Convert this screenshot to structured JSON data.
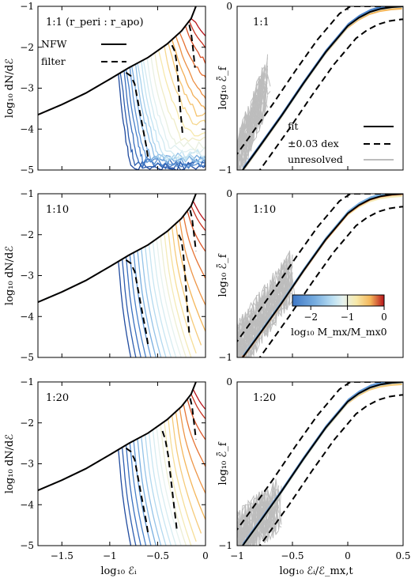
{
  "colors": {
    "nfw": "#000000",
    "filter": "#000000",
    "unresolved": "#bdbdbd",
    "colormap": [
      "#1f4a9e",
      "#3f78c6",
      "#78aee0",
      "#bfe2f3",
      "#e6f2ef",
      "#f7e8a8",
      "#f4b65a",
      "#e3642a",
      "#b8141b"
    ]
  },
  "colorbar": {
    "label": "log₁₀ M_mx/M_mx0",
    "ticks": [
      "−2",
      "−1",
      "0"
    ],
    "range": [
      -2.5,
      0
    ]
  },
  "legend_left": {
    "nfw": "NFW",
    "filter": "filter"
  },
  "legend_right": {
    "fit": "fit",
    "dex": "±0.03 dex",
    "unresolved": "unresolved"
  },
  "left_axes": {
    "xlabel": "log₁₀ ℰᵢ",
    "ylabel": "log₁₀ dN/dℰ",
    "xlim": [
      -1.75,
      0
    ],
    "ylim": [
      -5,
      -1
    ],
    "xticks": [
      "−1.5",
      "−1",
      "−0.5",
      "0"
    ],
    "yticks": [
      "−5",
      "−4",
      "−3",
      "−2",
      "−1"
    ]
  },
  "right_axes": {
    "xlabel": "log₁₀ ℰᵢ/ℰ_mx,t",
    "ylabel": "log₁₀ ℰ̄_f",
    "xlim": [
      -1,
      0.5
    ],
    "ylim": [
      -1,
      0
    ],
    "xticks": [
      "−1",
      "−0.5",
      "0",
      "0.5"
    ],
    "yticks": [
      "−1",
      "0"
    ]
  },
  "panels": [
    {
      "label": "1:1",
      "label_suffix": "(r_peri : r_apo)"
    },
    {
      "label": "1:10",
      "label_suffix": ""
    },
    {
      "label": "1:20",
      "label_suffix": ""
    }
  ],
  "chart_data": [
    {
      "type": "line",
      "panel": "1:1 left",
      "xlabel": "log₁₀ ℰᵢ",
      "ylabel": "log₁₀ dN/dℰ",
      "xlim": [
        -1.75,
        0
      ],
      "ylim": [
        -5,
        -1
      ],
      "nfw": {
        "x": [
          -1.75,
          -1.5,
          -1.25,
          -1.0,
          -0.8,
          -0.6,
          -0.4,
          -0.25,
          -0.15,
          -0.1
        ],
        "y": [
          -3.65,
          -3.4,
          -3.12,
          -2.78,
          -2.5,
          -2.25,
          -1.92,
          -1.6,
          -1.3,
          -1.0
        ]
      },
      "filter_curves": [
        {
          "x": [
            -0.83,
            -0.78,
            -0.74,
            -0.7,
            -0.66,
            -0.62,
            -0.6
          ],
          "y": [
            -2.62,
            -2.7,
            -2.9,
            -3.4,
            -3.9,
            -4.4,
            -4.7
          ]
        },
        {
          "x": [
            -0.35,
            -0.32,
            -0.3,
            -0.28,
            -0.26,
            -0.24
          ],
          "y": [
            -1.95,
            -2.1,
            -2.4,
            -3.0,
            -3.6,
            -4.1
          ]
        },
        {
          "x": [
            -0.17,
            -0.15,
            -0.13,
            -0.11
          ],
          "y": [
            -1.45,
            -1.65,
            -2.05,
            -2.5
          ]
        }
      ],
      "cut_points": [
        -0.9,
        -0.87,
        -0.84,
        -0.81,
        -0.78,
        -0.75,
        -0.72,
        -0.69,
        -0.66,
        -0.63,
        -0.6,
        -0.56,
        -0.52,
        -0.47,
        -0.42,
        -0.37,
        -0.33,
        -0.29,
        -0.25,
        -0.2,
        -0.16,
        -0.13
      ],
      "curve_tail_levels": [
        -4.9,
        -4.9,
        -4.85,
        -4.8,
        -4.8,
        -4.75,
        -4.7,
        -4.7,
        -4.65,
        -4.6,
        -4.5,
        -4.4,
        -4.2,
        -4.05,
        -3.9,
        -3.7,
        -3.5,
        -3.3,
        -3.0,
        -2.7,
        -2.4,
        -2.2
      ]
    },
    {
      "type": "line",
      "panel": "1:1 right",
      "xlabel": "log₁₀ ℰᵢ/ℰ_mx,t",
      "ylabel": "log₁₀ ℰ̄_f",
      "xlim": [
        -1,
        0.5
      ],
      "ylim": [
        -1,
        0
      ],
      "fit": {
        "x": [
          -0.95,
          -0.8,
          -0.6,
          -0.4,
          -0.2,
          0.0,
          0.1,
          0.2,
          0.3,
          0.4,
          0.5
        ],
        "y": [
          -1.0,
          -0.86,
          -0.67,
          -0.47,
          -0.28,
          -0.12,
          -0.07,
          -0.035,
          -0.015,
          -0.005,
          0.0
        ]
      },
      "dex_offset": 0.03
    },
    {
      "type": "line",
      "panel": "1:10 left",
      "xlabel": "log₁₀ ℰᵢ",
      "ylabel": "log₁₀ dN/dℰ",
      "xlim": [
        -1.75,
        0
      ],
      "ylim": [
        -5,
        -1
      ],
      "nfw": {
        "x": [
          -1.75,
          -1.5,
          -1.25,
          -1.0,
          -0.8,
          -0.6,
          -0.4,
          -0.25,
          -0.15,
          -0.1
        ],
        "y": [
          -3.65,
          -3.4,
          -3.12,
          -2.78,
          -2.5,
          -2.25,
          -1.92,
          -1.6,
          -1.3,
          -1.0
        ]
      },
      "filter_curves": [
        {
          "x": [
            -0.83,
            -0.78,
            -0.74,
            -0.7,
            -0.66,
            -0.62,
            -0.6
          ],
          "y": [
            -2.62,
            -2.7,
            -2.9,
            -3.4,
            -3.9,
            -4.4,
            -4.7
          ]
        },
        {
          "x": [
            -0.28,
            -0.25,
            -0.23,
            -0.21,
            -0.19,
            -0.17
          ],
          "y": [
            -2.0,
            -2.15,
            -2.5,
            -3.1,
            -3.8,
            -4.4
          ]
        },
        {
          "x": [
            -0.16,
            -0.14,
            -0.12,
            -0.1
          ],
          "y": [
            -1.4,
            -1.6,
            -2.0,
            -2.4
          ]
        }
      ],
      "cut_points": [
        -0.9,
        -0.86,
        -0.82,
        -0.78,
        -0.74,
        -0.7,
        -0.66,
        -0.62,
        -0.58,
        -0.54,
        -0.5,
        -0.46,
        -0.42,
        -0.38,
        -0.34,
        -0.3,
        -0.26,
        -0.22,
        -0.18,
        -0.14,
        -0.12
      ],
      "curve_tail_levels": [
        -5.0,
        -5.0,
        -5.0,
        -5.0,
        -5.0,
        -5.0,
        -5.0,
        -5.0,
        -5.0,
        -5.0,
        -5.0,
        -5.0,
        -5.0,
        -4.9,
        -4.7,
        -4.4,
        -4.0,
        -3.5,
        -2.9,
        -2.4,
        -2.2
      ]
    },
    {
      "type": "line",
      "panel": "1:10 right",
      "xlabel": "log₁₀ ℰᵢ/ℰ_mx,t",
      "ylabel": "log₁₀ ℰ̄_f",
      "xlim": [
        -1,
        0.5
      ],
      "ylim": [
        -1,
        0
      ],
      "fit": {
        "x": [
          -0.95,
          -0.8,
          -0.6,
          -0.4,
          -0.2,
          0.0,
          0.1,
          0.2,
          0.3,
          0.4,
          0.5
        ],
        "y": [
          -1.0,
          -0.86,
          -0.67,
          -0.47,
          -0.28,
          -0.12,
          -0.07,
          -0.035,
          -0.015,
          -0.005,
          0.0
        ]
      },
      "dex_offset": 0.03
    },
    {
      "type": "line",
      "panel": "1:20 left",
      "xlabel": "log₁₀ ℰᵢ",
      "ylabel": "log₁₀ dN/dℰ",
      "xlim": [
        -1.75,
        0
      ],
      "ylim": [
        -5,
        -1
      ],
      "nfw": {
        "x": [
          -1.75,
          -1.5,
          -1.25,
          -1.0,
          -0.8,
          -0.6,
          -0.4,
          -0.25,
          -0.15,
          -0.1
        ],
        "y": [
          -3.65,
          -3.4,
          -3.12,
          -2.78,
          -2.5,
          -2.25,
          -1.92,
          -1.6,
          -1.3,
          -1.0
        ]
      },
      "filter_curves": [
        {
          "x": [
            -0.83,
            -0.78,
            -0.74,
            -0.7,
            -0.66,
            -0.62,
            -0.6
          ],
          "y": [
            -2.62,
            -2.7,
            -2.9,
            -3.4,
            -3.9,
            -4.4,
            -4.7
          ]
        },
        {
          "x": [
            -0.45,
            -0.42,
            -0.39,
            -0.36,
            -0.33,
            -0.3
          ],
          "y": [
            -2.2,
            -2.4,
            -2.8,
            -3.4,
            -4.0,
            -4.6
          ]
        },
        {
          "x": [
            -0.16,
            -0.14,
            -0.12,
            -0.1
          ],
          "y": [
            -1.4,
            -1.6,
            -2.0,
            -2.4
          ]
        }
      ],
      "cut_points": [
        -0.9,
        -0.86,
        -0.82,
        -0.78,
        -0.74,
        -0.7,
        -0.66,
        -0.62,
        -0.58,
        -0.54,
        -0.5,
        -0.46,
        -0.42,
        -0.38,
        -0.34,
        -0.3,
        -0.26,
        -0.22,
        -0.18,
        -0.14,
        -0.12
      ],
      "curve_tail_levels": [
        -5.0,
        -5.0,
        -5.0,
        -5.0,
        -5.0,
        -5.0,
        -5.0,
        -5.0,
        -5.0,
        -5.0,
        -5.0,
        -5.0,
        -5.0,
        -4.9,
        -4.7,
        -4.4,
        -4.0,
        -3.5,
        -2.9,
        -2.4,
        -2.2
      ]
    },
    {
      "type": "line",
      "panel": "1:20 right",
      "xlabel": "log₁₀ ℰᵢ/ℰ_mx,t",
      "ylabel": "log₁₀ ℰ̄_f",
      "xlim": [
        -1,
        0.5
      ],
      "ylim": [
        -1,
        0
      ],
      "fit": {
        "x": [
          -0.95,
          -0.8,
          -0.6,
          -0.4,
          -0.2,
          0.0,
          0.1,
          0.2,
          0.3,
          0.4,
          0.5
        ],
        "y": [
          -1.0,
          -0.86,
          -0.67,
          -0.47,
          -0.28,
          -0.12,
          -0.07,
          -0.035,
          -0.015,
          -0.005,
          0.0
        ]
      },
      "dex_offset": 0.03
    }
  ]
}
